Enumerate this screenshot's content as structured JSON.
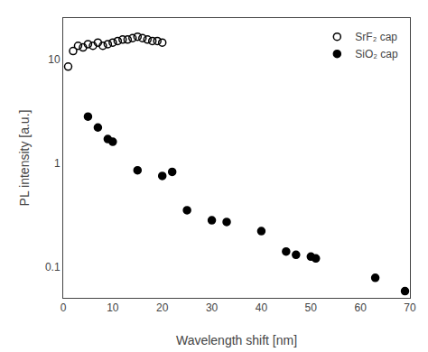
{
  "chart_data": {
    "type": "scatter",
    "xlabel": "Wavelength shift [nm]",
    "ylabel": "PL intensity [a.u.]",
    "series": [
      {
        "name": "SrF₂ cap",
        "color": "#000000",
        "marker": "circle-open",
        "x": [
          1,
          2,
          3,
          4,
          5,
          6,
          7,
          8,
          9,
          10,
          11,
          12,
          13,
          14,
          15,
          16,
          17,
          18,
          19,
          20
        ],
        "values": [
          8.5,
          12.0,
          13.5,
          13.0,
          14.0,
          13.5,
          14.5,
          13.5,
          14.0,
          14.5,
          15.0,
          15.5,
          15.5,
          16.0,
          16.5,
          16.0,
          15.5,
          15.0,
          15.0,
          14.5
        ]
      },
      {
        "name": "SiO₂ cap",
        "color": "#000000",
        "marker": "circle",
        "x": [
          5,
          7,
          9,
          10,
          15,
          20,
          22,
          25,
          30,
          33,
          40,
          45,
          47,
          50,
          51,
          63,
          69
        ],
        "values": [
          2.8,
          2.2,
          1.7,
          1.6,
          0.85,
          0.75,
          0.82,
          0.35,
          0.28,
          0.27,
          0.22,
          0.14,
          0.13,
          0.125,
          0.12,
          0.078,
          0.058
        ]
      }
    ],
    "log": "y",
    "xlim": [
      0,
      70
    ],
    "ylim": [
      0.05,
      25
    ],
    "xticks": [
      0,
      10,
      20,
      30,
      40,
      50,
      60,
      70
    ],
    "yticks": [
      0.1,
      1,
      10
    ],
    "grid": false,
    "legend": "upper right"
  }
}
